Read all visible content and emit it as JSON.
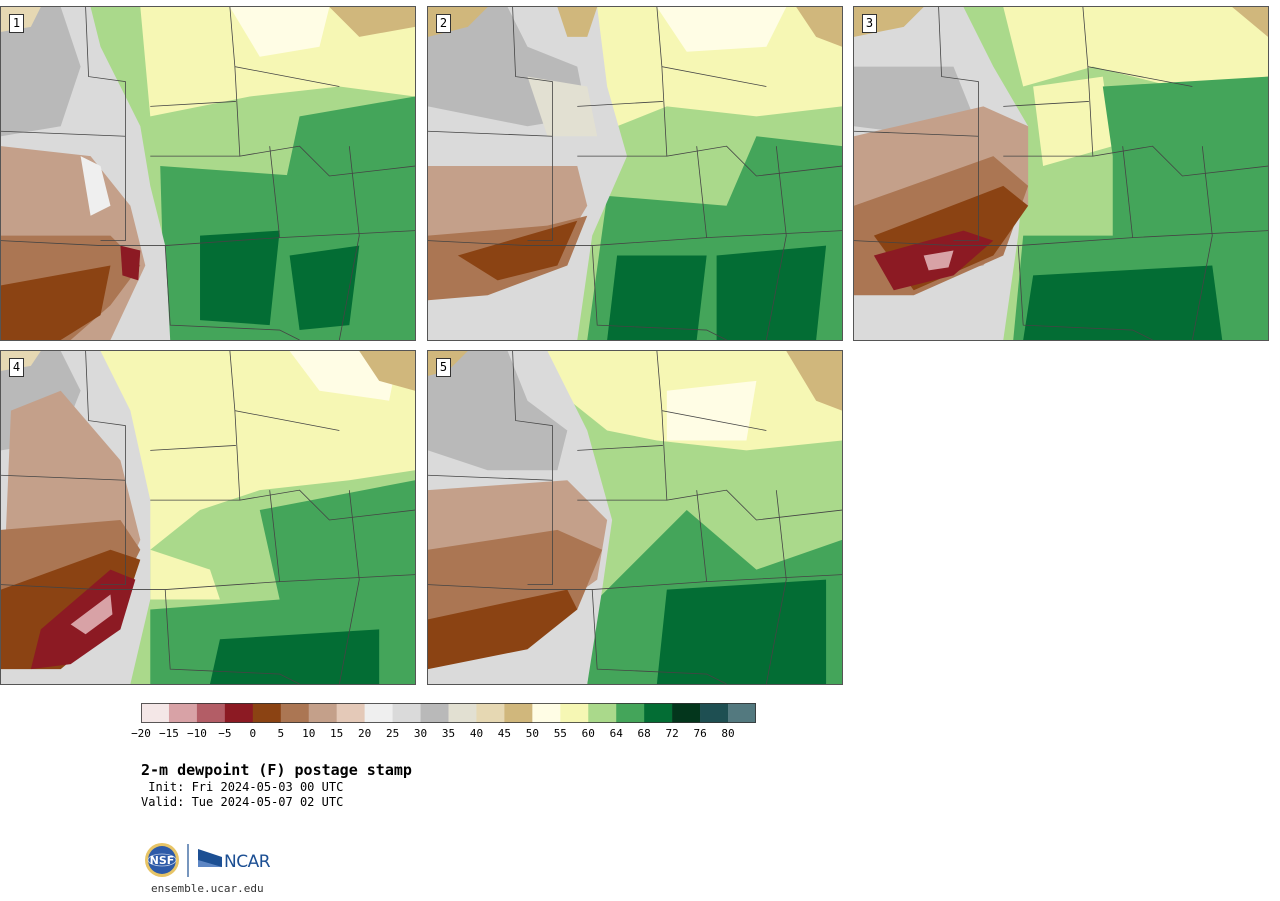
{
  "panels": [
    {
      "label": "1"
    },
    {
      "label": "2"
    },
    {
      "label": "3"
    },
    {
      "label": "4"
    },
    {
      "label": "5"
    }
  ],
  "colorbar": {
    "levels": [
      -20,
      -15,
      -10,
      -5,
      0,
      5,
      10,
      15,
      20,
      25,
      30,
      35,
      40,
      45,
      50,
      55,
      60,
      64,
      68,
      72,
      76,
      80
    ],
    "tick_labels": [
      "−20",
      "−15",
      "−10",
      "−5",
      "0",
      "5",
      "10",
      "15",
      "20",
      "25",
      "30",
      "35",
      "40",
      "45",
      "50",
      "55",
      "60",
      "64",
      "68",
      "72",
      "76",
      "80"
    ],
    "colors": [
      "#f4e7e7",
      "#d8a2a6",
      "#b35d66",
      "#8c1a23",
      "#8b4313",
      "#ab7653",
      "#c4a08a",
      "#e4c9b8",
      "#efefef",
      "#dadada",
      "#b9b9b9",
      "#e2e0d2",
      "#e6d8b3",
      "#d0b77c",
      "#fffde5",
      "#f6f7b4",
      "#aad98b",
      "#44a55a",
      "#036d34",
      "#03361c",
      "#1e4f52",
      "#53797f"
    ]
  },
  "title": "2-m dewpoint (F) postage stamp",
  "init": " Init: Fri 2024-05-03 00 UTC",
  "valid": "Valid: Tue 2024-05-07 02 UTC",
  "logo": {
    "nsf_text": "NSF",
    "ncar_text": "NCAR",
    "nsf_color": "#2d5aa8",
    "ncar_color": "#1c4f93"
  },
  "website": "ensemble.ucar.edu"
}
